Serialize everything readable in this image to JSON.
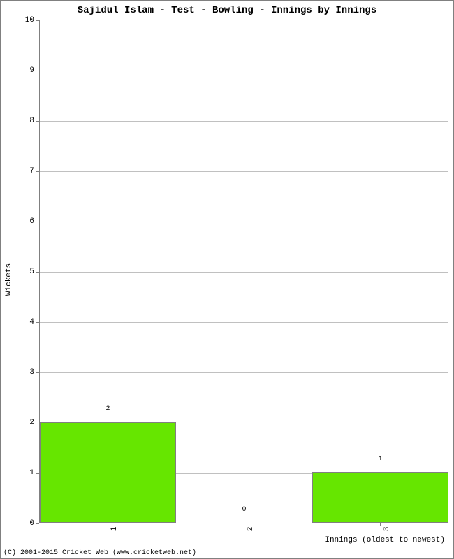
{
  "chart": {
    "type": "bar",
    "title": "Sajidul Islam - Test - Bowling - Innings by Innings",
    "title_fontsize": 14,
    "title_weight": "bold",
    "ylabel": "Wickets",
    "xlabel": "Innings (oldest to newest)",
    "label_fontsize": 11,
    "categories": [
      "1",
      "2",
      "3"
    ],
    "values": [
      2,
      0,
      1
    ],
    "bar_labels": [
      "2",
      "0",
      "1"
    ],
    "bar_color": "#66e600",
    "bar_border_color": "#808080",
    "ylim_min": 0,
    "ylim_max": 10,
    "ytick_step": 1,
    "grid_color": "#c0c0c0",
    "axis_color": "#808080",
    "background_color": "#ffffff",
    "bar_width_ratio": 1.0,
    "tick_fontsize": 11,
    "bar_label_fontsize": 10
  },
  "copyright": "(C) 2001-2015 Cricket Web (www.cricketweb.net)"
}
